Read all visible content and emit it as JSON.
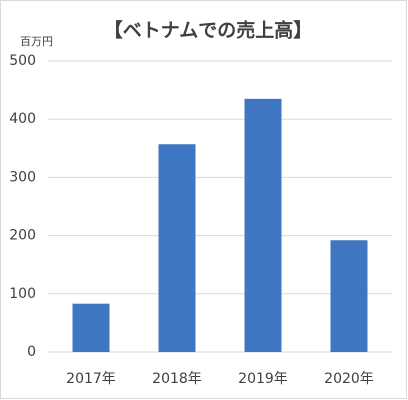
{
  "chart_data": {
    "type": "bar",
    "title": "【ベトナムでの売上高】",
    "y_unit": "百万円",
    "categories": [
      "2017年",
      "2018年",
      "2019年",
      "2020年"
    ],
    "values": [
      83,
      357,
      435,
      192
    ],
    "color": "#3f76c2",
    "ylim": [
      0,
      500
    ],
    "yticks": [
      0,
      100,
      200,
      300,
      400,
      500
    ],
    "grid": true
  }
}
